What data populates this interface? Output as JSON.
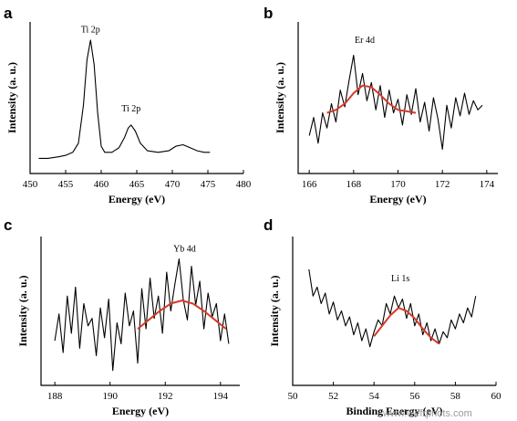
{
  "watermark": "www.wefrphots.com",
  "chart_data": [
    {
      "panel": "a",
      "type": "line",
      "xlabel": "Energy (eV)",
      "ylabel": "Intensity (a. u.)",
      "xlim": [
        450,
        480
      ],
      "xticks": [
        450,
        455,
        460,
        465,
        470,
        475,
        480
      ],
      "ylim": [
        0,
        100
      ],
      "annotations": [
        {
          "text": "Ti 2p",
          "x": 458.5,
          "y": 93
        },
        {
          "text": "Ti 2p",
          "x": 464.2,
          "y": 41
        }
      ],
      "series": [
        {
          "style": "black",
          "x": [
            451.2,
            452.5,
            454,
            455,
            456,
            456.8,
            457.5,
            458,
            458.5,
            459,
            459.5,
            460,
            460.5,
            461.5,
            462.5,
            463.3,
            463.8,
            464.2,
            464.8,
            465.5,
            466.5,
            468,
            469.5,
            470.5,
            471.5,
            472.5,
            473.5,
            474.5,
            475.3
          ],
          "y": [
            10,
            10,
            11,
            12,
            14,
            20,
            45,
            75,
            88,
            72,
            40,
            18,
            14,
            14,
            17,
            24,
            30,
            32,
            28,
            20,
            15,
            14,
            15,
            18,
            19,
            17,
            15,
            14,
            14
          ]
        }
      ]
    },
    {
      "panel": "b",
      "type": "line",
      "xlabel": "Energy (eV)",
      "ylabel": "Intensity (a. u.)",
      "xlim": [
        165.5,
        174.5
      ],
      "xticks": [
        166,
        168,
        170,
        172,
        174
      ],
      "ylim": [
        0,
        100
      ],
      "annotations": [
        {
          "text": "Er 4d",
          "x": 168.5,
          "y": 86
        }
      ],
      "series": [
        {
          "style": "black",
          "x": [
            166.0,
            166.2,
            166.4,
            166.6,
            166.8,
            167.0,
            167.2,
            167.4,
            167.6,
            167.8,
            168.0,
            168.2,
            168.4,
            168.6,
            168.8,
            169.0,
            169.2,
            169.4,
            169.6,
            169.8,
            170.0,
            170.2,
            170.4,
            170.6,
            170.8,
            171.0,
            171.2,
            171.4,
            171.6,
            171.8,
            172.0,
            172.2,
            172.4,
            172.6,
            172.8,
            173.0,
            173.2,
            173.4,
            173.6,
            173.8
          ],
          "y": [
            25,
            37,
            20,
            40,
            30,
            46,
            34,
            55,
            44,
            62,
            78,
            52,
            66,
            48,
            60,
            42,
            58,
            37,
            55,
            40,
            49,
            32,
            52,
            39,
            56,
            34,
            47,
            28,
            50,
            36,
            16,
            45,
            30,
            50,
            38,
            53,
            39,
            48,
            42,
            45
          ]
        },
        {
          "style": "red",
          "x": [
            166.8,
            167.2,
            167.6,
            168.0,
            168.4,
            168.8,
            169.2,
            169.6,
            170.0,
            170.4,
            170.8
          ],
          "y": [
            40,
            42,
            46,
            53,
            58,
            57,
            52,
            46,
            42,
            41,
            40
          ]
        }
      ]
    },
    {
      "panel": "c",
      "type": "line",
      "xlabel": "Energy (eV)",
      "ylabel": "Intensity (a. u.)",
      "xlim": [
        187.5,
        194.7
      ],
      "xticks": [
        188,
        190,
        192,
        194
      ],
      "ylim": [
        0,
        100
      ],
      "annotations": [
        {
          "text": "Yb 4d",
          "x": 192.7,
          "y": 90
        }
      ],
      "series": [
        {
          "style": "black",
          "x": [
            188.0,
            188.15,
            188.3,
            188.45,
            188.6,
            188.75,
            188.9,
            189.05,
            189.2,
            189.35,
            189.5,
            189.65,
            189.8,
            189.95,
            190.1,
            190.25,
            190.4,
            190.55,
            190.7,
            190.85,
            191.0,
            191.15,
            191.3,
            191.45,
            191.6,
            191.75,
            191.9,
            192.05,
            192.2,
            192.35,
            192.5,
            192.65,
            192.8,
            192.95,
            193.1,
            193.25,
            193.4,
            193.55,
            193.7,
            193.85,
            194.0,
            194.15,
            194.3
          ],
          "y": [
            30,
            48,
            22,
            60,
            35,
            66,
            25,
            55,
            40,
            45,
            20,
            52,
            32,
            58,
            10,
            42,
            28,
            62,
            40,
            50,
            15,
            65,
            38,
            72,
            45,
            60,
            35,
            76,
            50,
            68,
            85,
            58,
            44,
            80,
            54,
            70,
            38,
            62,
            46,
            55,
            30,
            48,
            28
          ]
        },
        {
          "style": "red",
          "x": [
            191.0,
            191.4,
            191.8,
            192.2,
            192.6,
            193.0,
            193.4,
            193.8,
            194.2
          ],
          "y": [
            38,
            44,
            50,
            55,
            57,
            55,
            50,
            44,
            38
          ]
        }
      ]
    },
    {
      "panel": "d",
      "type": "line",
      "xlabel": "Binding Energy (eV)",
      "ylabel": "Intensity (a. u.)",
      "xlim": [
        50,
        60
      ],
      "xticks": [
        50,
        52,
        54,
        56,
        58,
        60
      ],
      "ylim": [
        0,
        100
      ],
      "annotations": [
        {
          "text": "Li 1s",
          "x": 55.3,
          "y": 70
        }
      ],
      "series": [
        {
          "style": "black",
          "x": [
            50.8,
            51.0,
            51.2,
            51.4,
            51.6,
            51.8,
            52.0,
            52.2,
            52.4,
            52.6,
            52.8,
            53.0,
            53.2,
            53.4,
            53.6,
            53.8,
            54.0,
            54.2,
            54.4,
            54.6,
            54.8,
            55.0,
            55.2,
            55.4,
            55.6,
            55.8,
            56.0,
            56.2,
            56.4,
            56.6,
            56.8,
            57.0,
            57.2,
            57.4,
            57.6,
            57.8,
            58.0,
            58.2,
            58.4,
            58.6,
            58.8,
            59.0
          ],
          "y": [
            78,
            60,
            66,
            55,
            62,
            48,
            56,
            44,
            50,
            40,
            46,
            34,
            42,
            30,
            38,
            26,
            36,
            44,
            40,
            55,
            48,
            60,
            52,
            58,
            45,
            55,
            40,
            48,
            34,
            42,
            30,
            38,
            28,
            36,
            32,
            44,
            38,
            48,
            42,
            52,
            46,
            60
          ]
        },
        {
          "style": "red",
          "x": [
            54.0,
            54.4,
            54.8,
            55.2,
            55.6,
            56.0,
            56.4,
            56.8,
            57.2
          ],
          "y": [
            33,
            40,
            47,
            52,
            50,
            45,
            38,
            32,
            28
          ]
        }
      ]
    }
  ]
}
